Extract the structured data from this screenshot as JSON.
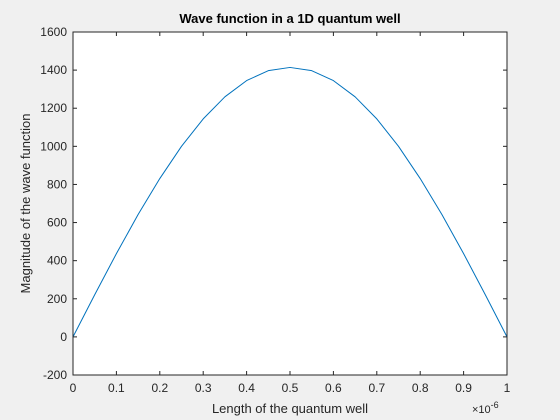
{
  "chart_data": {
    "type": "line",
    "title": "Wave function in a 1D quantum well",
    "xlabel": "Length of the quantum well",
    "ylabel": "Magnitude of the wave function",
    "x_exponent_label": "×10",
    "x_exponent_power": "-6",
    "xlim": [
      0,
      1e-06
    ],
    "ylim": [
      -200,
      1600
    ],
    "xticks": [
      0,
      1e-07,
      2e-07,
      3e-07,
      4e-07,
      5e-07,
      6e-07,
      7e-07,
      8e-07,
      9e-07,
      1e-06
    ],
    "xtick_labels": [
      "0",
      "0.1",
      "0.2",
      "0.3",
      "0.4",
      "0.5",
      "0.6",
      "0.7",
      "0.8",
      "0.9",
      "1"
    ],
    "yticks": [
      -200,
      0,
      200,
      400,
      600,
      800,
      1000,
      1200,
      1400,
      1600
    ],
    "ytick_labels": [
      "-200",
      "0",
      "200",
      "400",
      "600",
      "800",
      "1000",
      "1200",
      "1400",
      "1600"
    ],
    "grid": false,
    "series": [
      {
        "color": "#0072bd",
        "x": [
          0,
          5e-08,
          1e-07,
          1.5e-07,
          2e-07,
          2.5e-07,
          3e-07,
          3.5e-07,
          4e-07,
          4.5e-07,
          5e-07,
          5.5e-07,
          6e-07,
          6.5e-07,
          7e-07,
          7.5e-07,
          8e-07,
          8.5e-07,
          9e-07,
          9.5e-07,
          1e-06
        ],
        "y": [
          0,
          221,
          437,
          642,
          831,
          1000,
          1144,
          1260,
          1345,
          1397,
          1414,
          1397,
          1345,
          1260,
          1144,
          1000,
          831,
          642,
          437,
          221,
          0
        ]
      }
    ]
  }
}
